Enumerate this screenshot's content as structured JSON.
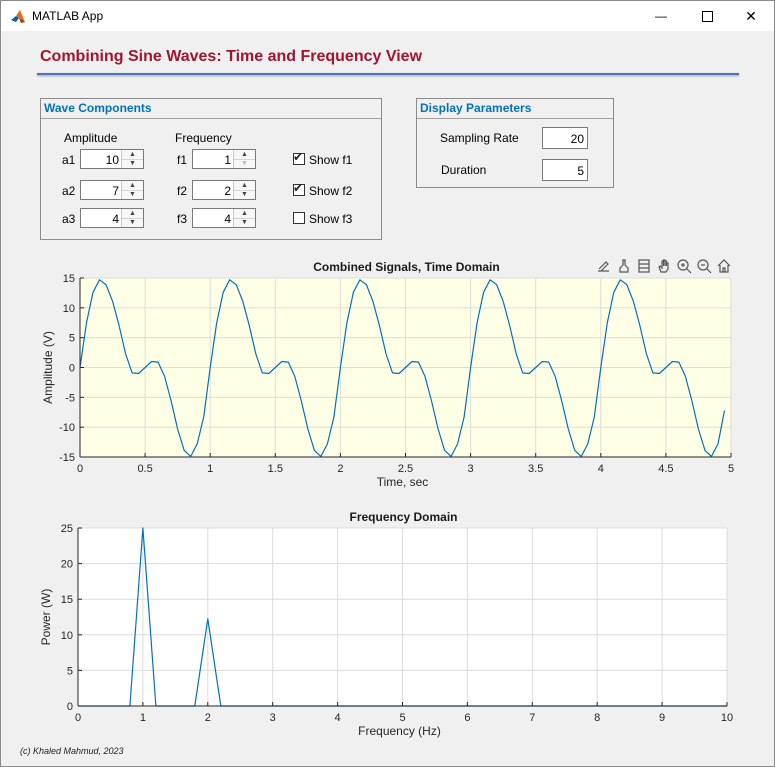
{
  "window": {
    "title": "MATLAB App",
    "minimize_glyph": "—",
    "close_glyph": "✕"
  },
  "header": {
    "title": "Combining Sine Waves: Time and Frequency View"
  },
  "wave_components": {
    "title": "Wave Components",
    "amplitude_header": "Amplitude",
    "frequency_header": "Frequency",
    "rows": [
      {
        "amp_label": "a1",
        "amp_value": "10",
        "freq_label": "f1",
        "freq_value": "1",
        "show_label": "Show f1",
        "show_checked": true
      },
      {
        "amp_label": "a2",
        "amp_value": "7",
        "freq_label": "f2",
        "freq_value": "2",
        "show_label": "Show f2",
        "show_checked": true
      },
      {
        "amp_label": "a3",
        "amp_value": "4",
        "freq_label": "f3",
        "freq_value": "4",
        "show_label": "Show f3",
        "show_checked": false
      }
    ]
  },
  "display_parameters": {
    "title": "Display Parameters",
    "sampling_rate_label": "Sampling Rate",
    "sampling_rate_value": "20",
    "duration_label": "Duration",
    "duration_value": "5"
  },
  "axes_toolbar": [
    "export-icon",
    "brush-icon",
    "data-tip-icon",
    "pan-icon",
    "zoom-in-icon",
    "zoom-out-icon",
    "home-icon"
  ],
  "chart_data": [
    {
      "type": "line",
      "title": "Combined Signals, Time Domain",
      "xlabel": "Time, sec",
      "ylabel": "Amplitude (V)",
      "xlim": [
        0,
        5
      ],
      "ylim": [
        -15,
        15
      ],
      "xticks": [
        0,
        0.5,
        1,
        1.5,
        2,
        2.5,
        3,
        3.5,
        4,
        4.5,
        5
      ],
      "xtick_labels": [
        "0",
        "0.5",
        "1",
        "1.5",
        "2",
        "2.5",
        "3",
        "3.5",
        "4",
        "4.5",
        "5"
      ],
      "yticks": [
        -15,
        -10,
        -5,
        0,
        5,
        10,
        15
      ],
      "ytick_labels": [
        "-15",
        "-10",
        "-5",
        "0",
        "5",
        "10",
        "15"
      ],
      "grid": true,
      "background": "#ffffe6",
      "line_color": "#0072bd",
      "sample_interval": 0.05,
      "period_values": [
        0,
        7.5,
        12.6,
        14.7,
        13.9,
        11.1,
        7.0,
        2.3,
        -0.9,
        -1.0,
        0,
        1.0,
        0.9,
        -1.5,
        -5.6,
        -10.3,
        -13.9,
        -14.9,
        -12.8,
        -8.3
      ],
      "x_end": 4.95,
      "y_end": -7.2
    },
    {
      "type": "line",
      "title": "Frequency Domain",
      "xlabel": "Frequency (Hz)",
      "ylabel": "Power (W)",
      "xlim": [
        0,
        10
      ],
      "ylim": [
        0,
        25
      ],
      "xticks": [
        0,
        1,
        2,
        3,
        4,
        5,
        6,
        7,
        8,
        9,
        10
      ],
      "xtick_labels": [
        "0",
        "1",
        "2",
        "3",
        "4",
        "5",
        "6",
        "7",
        "8",
        "9",
        "10"
      ],
      "yticks": [
        0,
        5,
        10,
        15,
        20,
        25
      ],
      "ytick_labels": [
        "0",
        "5",
        "10",
        "15",
        "20",
        "25"
      ],
      "grid": true,
      "background": "#ffffff",
      "line_color": "#0072bd",
      "x": [
        0,
        0.8,
        1.0,
        1.2,
        1.8,
        2.0,
        2.2,
        10
      ],
      "y": [
        0,
        0,
        25,
        0,
        0,
        12.25,
        0,
        0
      ]
    }
  ],
  "footer": {
    "copyright": "(c) Khaled Mahmud, 2023"
  }
}
